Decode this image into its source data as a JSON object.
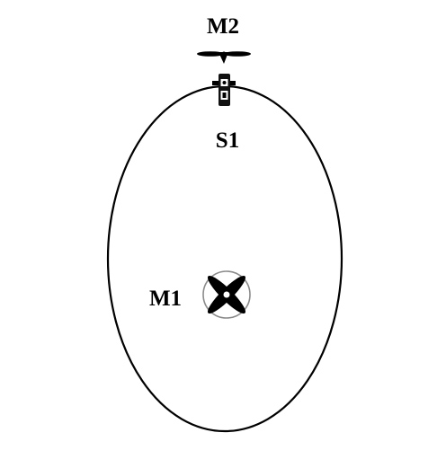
{
  "labels": {
    "top_motor": "M2",
    "sensor": "S1",
    "center_motor": "M1"
  },
  "colors": {
    "stroke": "#000000",
    "background": "#ffffff",
    "ring": "#8a8a8a"
  },
  "icons": {
    "top_motor": "two-blade-propeller-icon",
    "sensor": "sensor-module-icon",
    "center_motor": "four-blade-propeller-icon"
  }
}
